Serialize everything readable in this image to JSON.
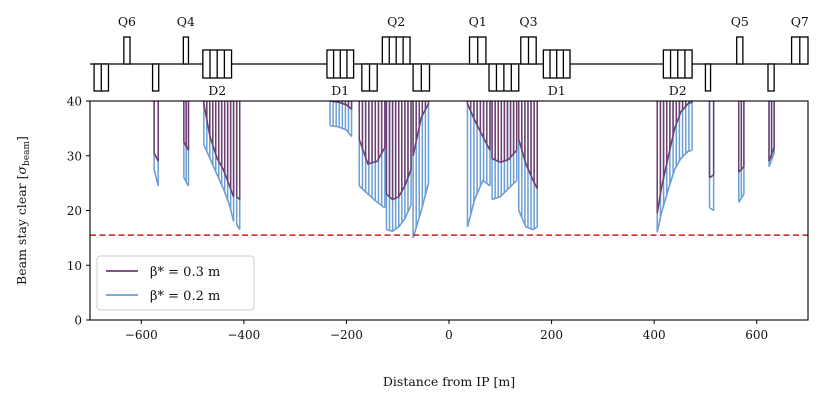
{
  "chart_data": {
    "type": "line",
    "title": "",
    "xlabel": "Distance from IP [m]",
    "ylabel": "Beam stay clear [σ_beam]",
    "xlim": [
      -700,
      700
    ],
    "ylim": [
      0,
      40
    ],
    "xticks": [
      -600,
      -400,
      -200,
      0,
      200,
      400,
      600
    ],
    "yticks": [
      0,
      10,
      20,
      30,
      40
    ],
    "xtick_labels": [
      "−600",
      "−400",
      "−200",
      "0",
      "200",
      "400",
      "600"
    ],
    "ytick_labels": [
      "0",
      "10",
      "20",
      "30",
      "40"
    ],
    "threshold": {
      "value": 15.5,
      "color": "#cc1f1f",
      "style": "dashed"
    },
    "legend": {
      "placement": "lower-left"
    },
    "series": [
      {
        "name": "β* = 0.3 m",
        "color": "#6e3f70",
        "segments": [
          {
            "x": [
              -575,
              -567
            ],
            "y": [
              30.5,
              29.0
            ]
          },
          {
            "x": [
              -517,
              -508
            ],
            "y": [
              32.5,
              31.0
            ]
          },
          {
            "x": [
              -478,
              -466,
              -452,
              -440,
              -428,
              -420
            ],
            "y": [
              39.5,
              33.5,
              29.5,
              27.5,
              24.5,
              22.5
            ]
          },
          {
            "x": [
              -414,
              -408
            ],
            "y": [
              22.5,
              22.0
            ]
          },
          {
            "x": [
              -232,
              -216,
              -200,
              -190
            ],
            "y": [
              40.0,
              39.8,
              39.3,
              38.5
            ]
          },
          {
            "x": [
              -175,
              -158,
              -140,
              -125
            ],
            "y": [
              33.0,
              28.5,
              29.0,
              31.5
            ]
          },
          {
            "x": [
              -122,
              -110,
              -98,
              -86,
              -74
            ],
            "y": [
              23.0,
              22.0,
              22.5,
              24.5,
              27.5
            ]
          },
          {
            "x": [
              -70,
              -54,
              -40
            ],
            "y": [
              30.0,
              37.0,
              39.5
            ]
          },
          {
            "x": [
              36,
              50,
              66,
              80
            ],
            "y": [
              39.5,
              36.5,
              33.5,
              31.0
            ]
          },
          {
            "x": [
              84,
              100,
              116,
              132
            ],
            "y": [
              29.5,
              28.8,
              29.3,
              31.0
            ]
          },
          {
            "x": [
              136,
              150,
              164,
              172
            ],
            "y": [
              33.0,
              28.5,
              25.5,
              24.0
            ]
          },
          {
            "x": [
              406,
              414,
              428,
              440,
              452,
              466,
              474
            ],
            "y": [
              19.5,
              24.0,
              30.0,
              35.0,
              38.0,
              39.5,
              39.8
            ]
          },
          {
            "x": [
              508,
              516
            ],
            "y": [
              26.0,
              26.5
            ]
          },
          {
            "x": [
              565,
              575
            ],
            "y": [
              27.0,
              28.0
            ]
          },
          {
            "x": [
              624,
              634
            ],
            "y": [
              29.0,
              31.5
            ]
          }
        ]
      },
      {
        "name": "β* = 0.2 m",
        "color": "#6b9ed4",
        "segments": [
          {
            "x": [
              -575,
              -567
            ],
            "y": [
              27.5,
              24.5
            ]
          },
          {
            "x": [
              -517,
              -508
            ],
            "y": [
              26.0,
              24.5
            ]
          },
          {
            "x": [
              -478,
              -466,
              -452,
              -440,
              -428,
              -420
            ],
            "y": [
              32.0,
              29.5,
              26.5,
              24.0,
              21.0,
              18.0
            ]
          },
          {
            "x": [
              -414,
              -408
            ],
            "y": [
              17.5,
              16.5
            ]
          },
          {
            "x": [
              -232,
              -216,
              -200,
              -190
            ],
            "y": [
              35.5,
              35.3,
              34.7,
              33.5
            ]
          },
          {
            "x": [
              -175,
              -158,
              -140,
              -125
            ],
            "y": [
              24.5,
              23.0,
              21.5,
              20.5
            ]
          },
          {
            "x": [
              -122,
              -110,
              -98,
              -86,
              -74
            ],
            "y": [
              16.5,
              16.2,
              17.0,
              18.5,
              21.0
            ]
          },
          {
            "x": [
              -70,
              -54,
              -40
            ],
            "y": [
              15.0,
              20.0,
              25.0
            ]
          },
          {
            "x": [
              36,
              50,
              66,
              80
            ],
            "y": [
              17.0,
              22.0,
              25.5,
              24.5
            ]
          },
          {
            "x": [
              84,
              100,
              116,
              132
            ],
            "y": [
              22.0,
              22.5,
              24.0,
              25.5
            ]
          },
          {
            "x": [
              136,
              150,
              164,
              172
            ],
            "y": [
              20.0,
              17.0,
              16.5,
              17.0
            ]
          },
          {
            "x": [
              406,
              414,
              428,
              440,
              452,
              466,
              474
            ],
            "y": [
              16.0,
              19.5,
              24.0,
              27.5,
              29.5,
              30.8,
              31.0
            ]
          },
          {
            "x": [
              508,
              516
            ],
            "y": [
              20.5,
              20.0
            ]
          },
          {
            "x": [
              565,
              575
            ],
            "y": [
              21.5,
              23.0
            ]
          },
          {
            "x": [
              624,
              634
            ],
            "y": [
              28.0,
              30.5
            ]
          }
        ]
      }
    ],
    "lattice": {
      "quadrupoles": [
        {
          "label": "Q6",
          "x0": -692,
          "x1": -664,
          "side": "down",
          "n_div": 2,
          "labeled": false
        },
        {
          "label": "Q6",
          "x0": -634,
          "x1": -622,
          "side": "up",
          "n_div": 1,
          "labeled": true
        },
        {
          "label": "Q5",
          "x0": -578,
          "x1": -566,
          "side": "down",
          "n_div": 1,
          "labeled": false
        },
        {
          "label": "Q4",
          "x0": -518,
          "x1": -508,
          "side": "up",
          "n_div": 1,
          "labeled": true
        },
        {
          "label": "Q3",
          "x0": -170,
          "x1": -140,
          "side": "down",
          "n_div": 2,
          "labeled": false
        },
        {
          "label": "Q2",
          "x0": -130,
          "x1": -76,
          "side": "up",
          "n_div": 4,
          "labeled": true
        },
        {
          "label": "Q1",
          "x0": -70,
          "x1": -38,
          "side": "down",
          "n_div": 2,
          "labeled": false
        },
        {
          "label": "Q1",
          "x0": 40,
          "x1": 72,
          "side": "up",
          "n_div": 2,
          "labeled": true
        },
        {
          "label": "Q2",
          "x0": 78,
          "x1": 136,
          "side": "down",
          "n_div": 4,
          "labeled": false
        },
        {
          "label": "Q3",
          "x0": 140,
          "x1": 170,
          "side": "up",
          "n_div": 2,
          "labeled": true
        },
        {
          "label": "Q4",
          "x0": 500,
          "x1": 510,
          "side": "down",
          "n_div": 1,
          "labeled": false
        },
        {
          "label": "Q5",
          "x0": 561,
          "x1": 573,
          "side": "up",
          "n_div": 1,
          "labeled": true
        },
        {
          "label": "Q6",
          "x0": 622,
          "x1": 634,
          "side": "down",
          "n_div": 1,
          "labeled": false
        },
        {
          "label": "Q7",
          "x0": 668,
          "x1": 700,
          "side": "up",
          "n_div": 2,
          "labeled": true
        }
      ],
      "dipoles": [
        {
          "label": "D2",
          "x0": -480,
          "x1": -424,
          "n_div": 4,
          "label_pos": "below"
        },
        {
          "label": "D1",
          "x0": -238,
          "x1": -186,
          "n_div": 4,
          "label_pos": "below"
        },
        {
          "label": "D1",
          "x0": 184,
          "x1": 236,
          "n_div": 4,
          "label_pos": "below"
        },
        {
          "label": "D2",
          "x0": 418,
          "x1": 474,
          "n_div": 4,
          "label_pos": "below"
        }
      ]
    }
  }
}
